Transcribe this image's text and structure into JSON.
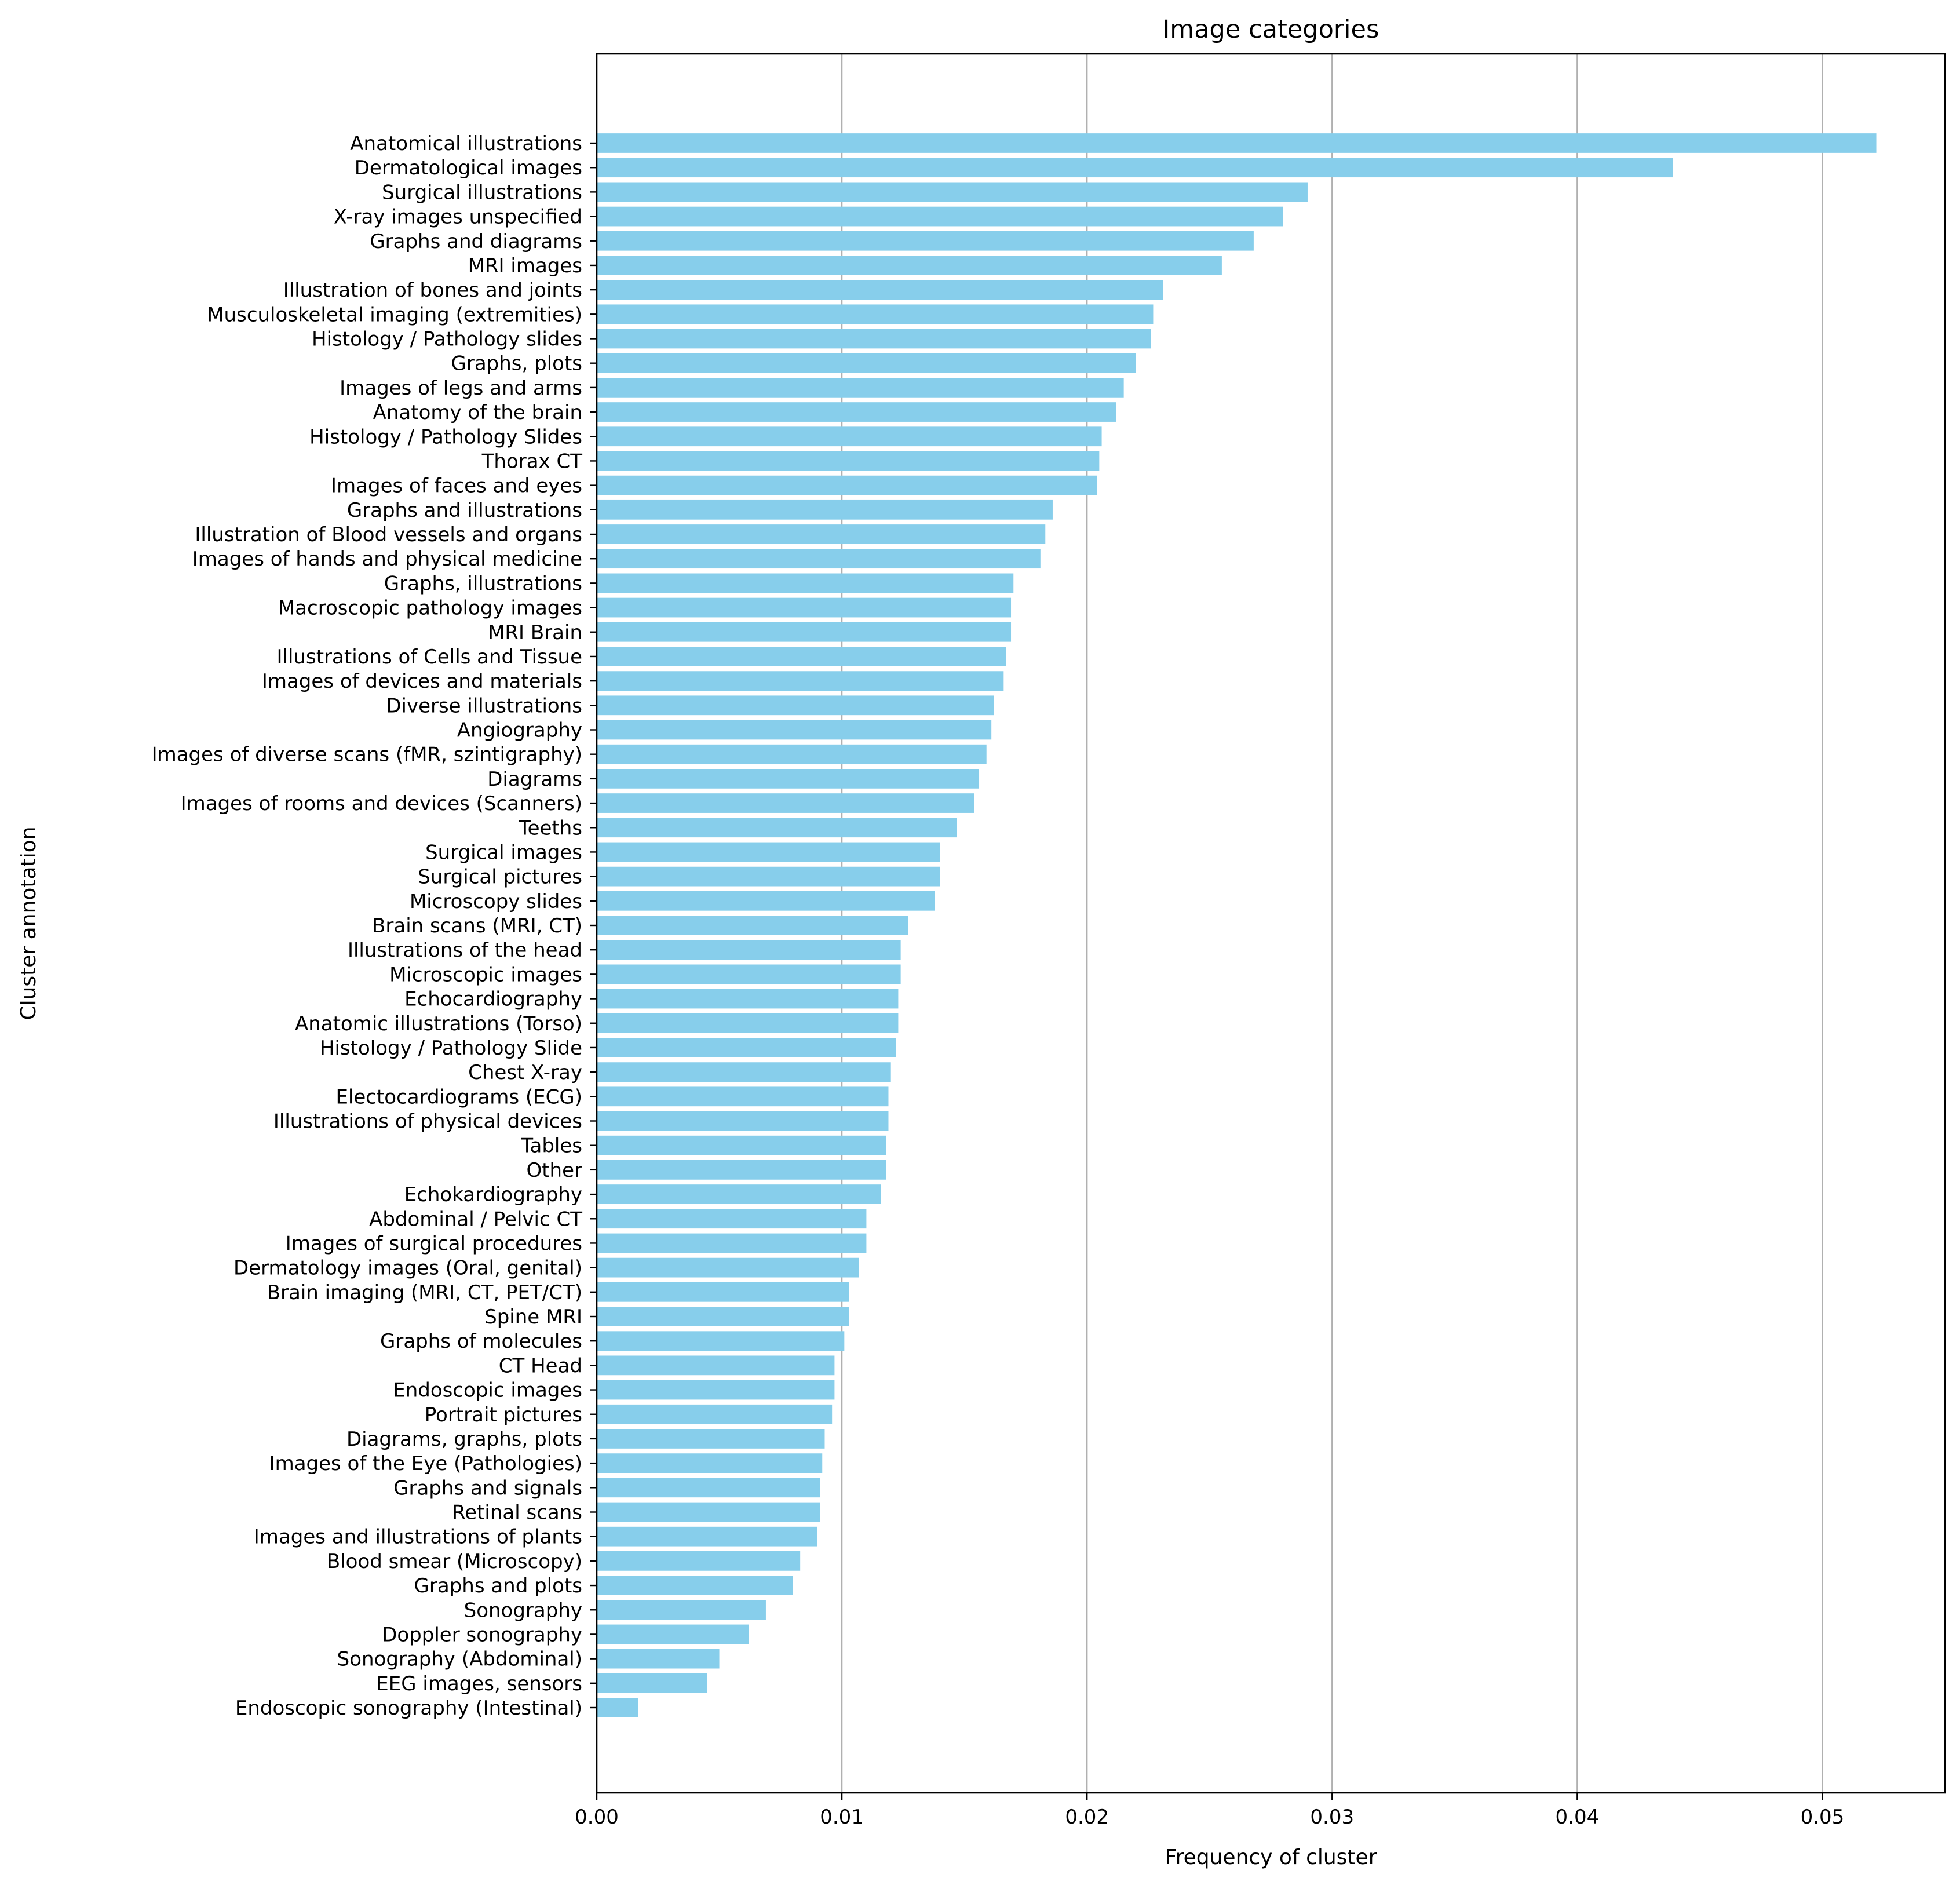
{
  "chart_data": {
    "type": "bar",
    "orientation": "horizontal",
    "title": "Image categories",
    "xlabel": "Frequency of cluster",
    "ylabel": "Cluster annotation",
    "xlim": [
      0,
      0.055
    ],
    "xticks": [
      "0.00",
      "0.01",
      "0.02",
      "0.03",
      "0.04",
      "0.05"
    ],
    "grid": "vertical gridlines on x ticks",
    "bar_color": "#87CEEB",
    "grid_color": "#b0b0b0",
    "categories": [
      "Anatomical illustrations",
      "Dermatological images",
      "Surgical illustrations",
      "X-ray images unspecified",
      "Graphs and diagrams",
      "MRI images",
      "Illustration of bones and joints",
      "Musculoskeletal imaging (extremities)",
      "Histology / Pathology slides",
      "Graphs, plots",
      "Images of legs and arms",
      "Anatomy of the brain",
      "Histology / Pathology Slides",
      "Thorax CT",
      "Images of faces and eyes",
      "Graphs and illustrations",
      "Illustration of Blood vessels and organs",
      "Images of hands and physical medicine",
      "Graphs, illustrations",
      "Macroscopic pathology images",
      "MRI Brain",
      "Illustrations of Cells and Tissue",
      "Images of devices and materials",
      "Diverse illustrations",
      "Angiography",
      "Images of diverse scans (fMR, szintigraphy)",
      "Diagrams",
      "Images of rooms and devices (Scanners)",
      "Teeths",
      "Surgical images",
      "Surgical pictures",
      "Microscopy slides",
      "Brain scans (MRI, CT)",
      "Illustrations of the head",
      "Microscopic images",
      "Echocardiography",
      "Anatomic illustrations (Torso)",
      "Histology / Pathology Slide",
      "Chest X-ray",
      "Electocardiograms (ECG)",
      "Illustrations of physical devices",
      "Tables",
      "Other",
      "Echokardiography",
      "Abdominal / Pelvic CT",
      "Images of surgical procedures",
      "Dermatology images (Oral, genital)",
      "Brain imaging (MRI, CT, PET/CT)",
      "Spine MRI",
      "Graphs of molecules",
      "CT Head",
      "Endoscopic images",
      "Portrait pictures",
      "Diagrams, graphs, plots",
      "Images of the Eye (Pathologies)",
      "Graphs and signals",
      "Retinal scans",
      "Images and illustrations of plants",
      "Blood smear (Microscopy)",
      "Graphs and plots",
      "Sonography",
      "Doppler sonography",
      "Sonography (Abdominal)",
      "EEG images, sensors",
      "Endoscopic sonography (Intestinal)"
    ],
    "values": [
      0.0522,
      0.0439,
      0.029,
      0.028,
      0.0268,
      0.0255,
      0.0231,
      0.0227,
      0.0226,
      0.022,
      0.0215,
      0.0212,
      0.0206,
      0.0205,
      0.0204,
      0.0186,
      0.0183,
      0.0181,
      0.017,
      0.0169,
      0.0169,
      0.0167,
      0.0166,
      0.0162,
      0.0161,
      0.0159,
      0.0156,
      0.0154,
      0.0147,
      0.014,
      0.014,
      0.0138,
      0.0127,
      0.0124,
      0.0124,
      0.0123,
      0.0123,
      0.0122,
      0.012,
      0.0119,
      0.0119,
      0.0118,
      0.0118,
      0.0116,
      0.011,
      0.011,
      0.0107,
      0.0103,
      0.0103,
      0.0101,
      0.0097,
      0.0097,
      0.0096,
      0.0093,
      0.0092,
      0.0091,
      0.0091,
      0.009,
      0.0083,
      0.008,
      0.0069,
      0.0062,
      0.005,
      0.0045,
      0.0017
    ]
  }
}
